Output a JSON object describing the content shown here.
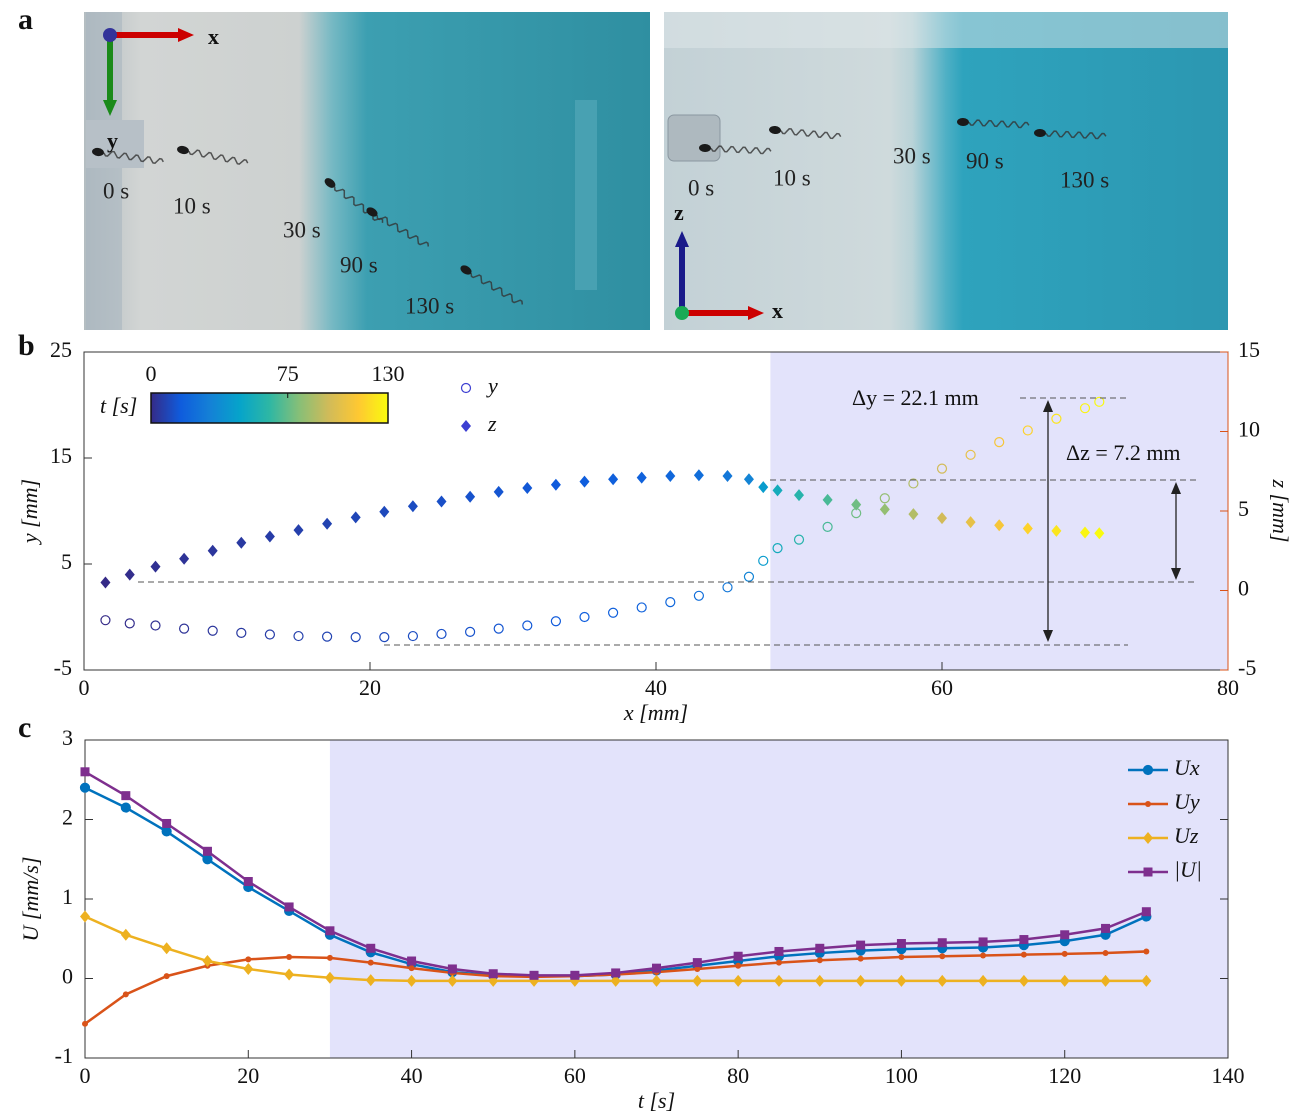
{
  "panel_labels": [
    "a",
    "b",
    "c"
  ],
  "photos": [
    {
      "axis_labels": [
        "x",
        "y"
      ],
      "time_labels": [
        "0 s",
        "10 s",
        "30 s",
        "90 s",
        "130 s"
      ]
    },
    {
      "axis_labels": [
        "z",
        "x"
      ],
      "time_labels": [
        "0 s",
        "10 s",
        "30 s",
        "90 s",
        "130 s"
      ]
    }
  ],
  "chart_data": [
    {
      "type": "scatter",
      "xlabel": "x [mm]",
      "ylabel": "y [mm]",
      "y2label": "z [mm]",
      "x": [
        1.5,
        3.2,
        5,
        7,
        9,
        11,
        13,
        15,
        17,
        19,
        21,
        23,
        25,
        27,
        29,
        31,
        33,
        35,
        37,
        39,
        41,
        43,
        45,
        46.5,
        47.5,
        48.5,
        50,
        52,
        54,
        56,
        58,
        60,
        62,
        64,
        66,
        68,
        70,
        71
      ],
      "t": [
        0,
        1,
        2,
        3,
        4,
        5,
        6,
        7,
        8,
        9,
        10,
        11,
        12,
        13,
        14,
        15,
        16,
        17,
        18,
        19,
        21,
        24,
        28,
        34,
        45,
        55,
        62,
        70,
        77,
        84,
        91,
        98,
        105,
        111,
        117,
        123,
        128,
        130
      ],
      "series": [
        {
          "name": "y",
          "marker": "circle",
          "legend_color": "#3d3fd2",
          "values": [
            -0.3,
            -0.6,
            -0.8,
            -1.1,
            -1.3,
            -1.5,
            -1.65,
            -1.8,
            -1.85,
            -1.9,
            -1.9,
            -1.8,
            -1.6,
            -1.4,
            -1.1,
            -0.8,
            -0.4,
            0,
            0.4,
            0.9,
            1.4,
            2.0,
            2.8,
            3.8,
            5.3,
            6.5,
            7.3,
            8.5,
            9.8,
            11.2,
            12.6,
            14,
            15.3,
            16.5,
            17.6,
            18.7,
            19.7,
            20.3
          ]
        },
        {
          "name": "z",
          "marker": "diamond",
          "axis": "y2",
          "legend_color": "#3d3fd2",
          "values": [
            0.5,
            1.0,
            1.5,
            2.0,
            2.5,
            3.0,
            3.4,
            3.8,
            4.2,
            4.6,
            4.95,
            5.3,
            5.6,
            5.9,
            6.2,
            6.45,
            6.65,
            6.85,
            7.0,
            7.1,
            7.2,
            7.25,
            7.2,
            7.0,
            6.5,
            6.3,
            6.0,
            5.7,
            5.4,
            5.1,
            4.8,
            4.55,
            4.3,
            4.1,
            3.9,
            3.75,
            3.65,
            3.6
          ]
        }
      ],
      "xlim": [
        0,
        80
      ],
      "xticks": [
        0,
        20,
        40,
        60,
        80
      ],
      "ylim": [
        -5,
        25
      ],
      "yticks": [
        -5,
        5,
        15,
        25
      ],
      "y2lim": [
        -5,
        15
      ],
      "y2ticks": [
        -5,
        0,
        5,
        10,
        15
      ],
      "y2_color": "#d95319",
      "colorbar": {
        "label": "t [s]",
        "lim": [
          0,
          130
        ],
        "ticks": [
          0,
          75,
          130
        ],
        "colormap": [
          "#352a87",
          "#0f5cdd",
          "#1481d6",
          "#06a4ca",
          "#2eb7a4",
          "#87bf77",
          "#d1bb59",
          "#fec832",
          "#f9fb0e"
        ]
      },
      "shaded_xrange": [
        48,
        80
      ],
      "shade_color": "#e3e3fb",
      "annotations": [
        "Δy = 22.1 mm",
        "Δz = 7.2 mm"
      ]
    },
    {
      "type": "line",
      "xlabel": "t [s]",
      "ylabel": "U [mm/s]",
      "x": [
        0,
        5,
        10,
        15,
        20,
        25,
        30,
        35,
        40,
        45,
        50,
        55,
        60,
        65,
        70,
        75,
        80,
        85,
        90,
        95,
        100,
        105,
        110,
        115,
        120,
        125,
        130
      ],
      "series": [
        {
          "name": "Ux",
          "color": "#0072bd",
          "marker": "circle",
          "values": [
            2.4,
            2.15,
            1.85,
            1.5,
            1.15,
            0.85,
            0.55,
            0.33,
            0.18,
            0.08,
            0.04,
            0.03,
            0.03,
            0.05,
            0.1,
            0.16,
            0.22,
            0.28,
            0.32,
            0.35,
            0.37,
            0.38,
            0.39,
            0.42,
            0.47,
            0.55,
            0.78
          ]
        },
        {
          "name": "Uy",
          "color": "#d95319",
          "marker": "dot",
          "values": [
            -0.57,
            -0.2,
            0.03,
            0.16,
            0.24,
            0.27,
            0.26,
            0.2,
            0.13,
            0.07,
            0.03,
            0.02,
            0.03,
            0.05,
            0.08,
            0.12,
            0.16,
            0.2,
            0.23,
            0.25,
            0.27,
            0.28,
            0.29,
            0.3,
            0.31,
            0.32,
            0.34
          ]
        },
        {
          "name": "Uz",
          "color": "#edb120",
          "marker": "diamond",
          "values": [
            0.78,
            0.55,
            0.38,
            0.22,
            0.12,
            0.05,
            0.01,
            -0.02,
            -0.03,
            -0.03,
            -0.03,
            -0.03,
            -0.03,
            -0.03,
            -0.03,
            -0.03,
            -0.03,
            -0.03,
            -0.03,
            -0.03,
            -0.03,
            -0.03,
            -0.03,
            -0.03,
            -0.03,
            -0.03,
            -0.03
          ]
        },
        {
          "name": "|U|",
          "color": "#7e2f8e",
          "marker": "square",
          "values": [
            2.6,
            2.3,
            1.95,
            1.6,
            1.22,
            0.9,
            0.6,
            0.38,
            0.22,
            0.12,
            0.06,
            0.04,
            0.04,
            0.07,
            0.13,
            0.2,
            0.28,
            0.34,
            0.38,
            0.42,
            0.44,
            0.45,
            0.46,
            0.49,
            0.55,
            0.63,
            0.84
          ]
        }
      ],
      "xlim": [
        0,
        140
      ],
      "xticks": [
        0,
        20,
        40,
        60,
        80,
        100,
        120,
        140
      ],
      "ylim": [
        -1,
        3
      ],
      "yticks": [
        -1,
        0,
        1,
        2,
        3
      ],
      "shaded_xrange": [
        30,
        140
      ],
      "shade_color": "#e3e3fb",
      "legend": "upper right"
    }
  ]
}
